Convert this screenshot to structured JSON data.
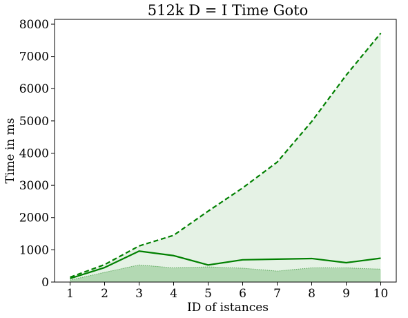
{
  "chart_data": {
    "type": "line",
    "title": "512k    D = I    Time    Goto",
    "xlabel": "ID of istances",
    "ylabel": "Time in ms",
    "x": [
      1,
      2,
      3,
      4,
      5,
      6,
      7,
      8,
      9,
      10
    ],
    "xticks": [
      "1",
      "2",
      "3",
      "4",
      "5",
      "6",
      "7",
      "8",
      "9",
      "10"
    ],
    "xlim": [
      0.55,
      10.45
    ],
    "ylim": [
      0,
      8150
    ],
    "yticks": [
      "0",
      "1000",
      "2000",
      "3000",
      "4000",
      "5000",
      "6000",
      "7000",
      "8000"
    ],
    "ytick_values": [
      0,
      1000,
      2000,
      3000,
      4000,
      5000,
      6000,
      7000,
      8000
    ],
    "grid": false,
    "series": [
      {
        "style": "dashed",
        "color": "#008000",
        "fill": "#e5f2e5",
        "values": [
          150,
          540,
          1120,
          1450,
          2200,
          2920,
          3720,
          4980,
          6420,
          7720
        ]
      },
      {
        "style": "solid",
        "color": "#008000",
        "values": [
          110,
          450,
          960,
          820,
          530,
          690,
          710,
          730,
          600,
          740
        ]
      },
      {
        "style": "dotted",
        "color": "#5aa85a",
        "fill": "#b3d9b3",
        "values": [
          60,
          300,
          530,
          440,
          470,
          430,
          340,
          440,
          440,
          400
        ]
      }
    ]
  }
}
